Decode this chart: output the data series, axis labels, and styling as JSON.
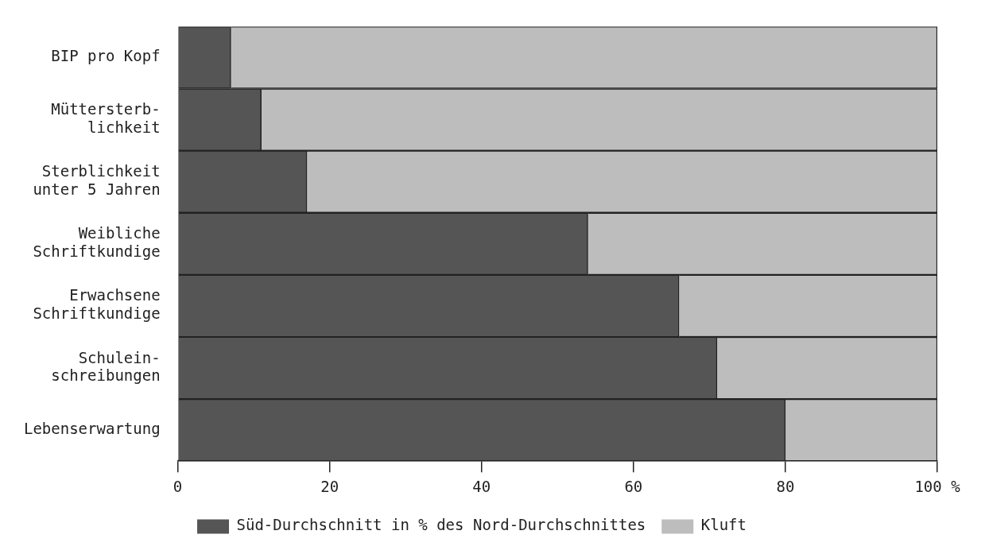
{
  "chart_data": {
    "type": "bar",
    "orientation": "horizontal",
    "stacked": true,
    "categories": [
      "BIP pro Kopf",
      "Müttersterb-\nlichkeit",
      "Sterblichkeit\nunter 5 Jahren",
      "Weibliche\nSchriftkundige",
      "Erwachsene\nSchriftkundige",
      "Schulein-\nschreibungen",
      "Lebenserwartung"
    ],
    "series": [
      {
        "name": "Süd-Durchschnitt in % des Nord-Durchschnittes",
        "color": "#555555",
        "values": [
          7,
          11,
          17,
          54,
          66,
          71,
          80
        ]
      },
      {
        "name": "Kluft",
        "color": "#bdbdbd",
        "values": [
          93,
          89,
          83,
          46,
          34,
          29,
          20
        ]
      }
    ],
    "xlim": [
      0,
      100
    ],
    "xticks": [
      0,
      20,
      40,
      60,
      80,
      {
        "value": 100,
        "label": "100 %"
      }
    ],
    "grid": false,
    "legend": "bottom"
  }
}
